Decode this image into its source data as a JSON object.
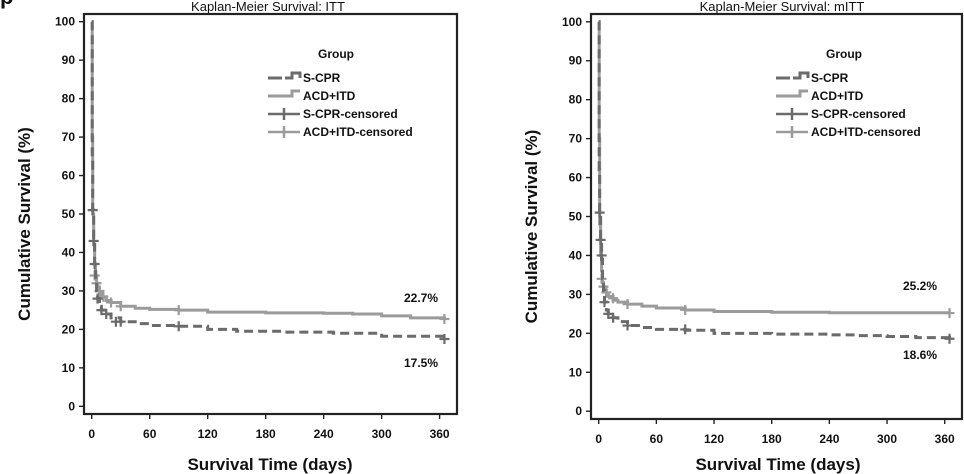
{
  "colors": {
    "s_cpr": "#6b6b6b",
    "acd_itd": "#9b9b9b"
  },
  "chart_data": [
    {
      "type": "line",
      "title": "Kaplan-Meier Survival:  ITT",
      "xlabel": "Survival Time (days)",
      "ylabel": "Cumulative Survival (%)",
      "xlim": [
        -8,
        378
      ],
      "ylim": [
        -2,
        102
      ],
      "xticks": [
        0,
        60,
        120,
        180,
        240,
        300,
        360
      ],
      "yticks": [
        0,
        10,
        20,
        30,
        40,
        50,
        60,
        70,
        80,
        90,
        100
      ],
      "grid": false,
      "legend": {
        "title": "Group",
        "position": "top-right",
        "entries": [
          "S-CPR",
          "ACD+ITD",
          "S-CPR-censored",
          "ACD+ITD-censored"
        ]
      },
      "series": [
        {
          "name": "S-CPR",
          "style": "dashed",
          "x": [
            0,
            0.5,
            1,
            2,
            3,
            4,
            5,
            6,
            8,
            10,
            14,
            20,
            30,
            45,
            60,
            90,
            120,
            150,
            200,
            250,
            300,
            365
          ],
          "y": [
            100,
            64,
            51,
            43,
            37,
            33,
            30,
            28,
            26,
            25,
            24,
            23,
            22,
            21.5,
            21,
            20.8,
            20,
            19.5,
            19.3,
            19,
            18.2,
            17.5
          ],
          "censored": [
            [
              1,
              51
            ],
            [
              2,
              43
            ],
            [
              3,
              37
            ],
            [
              6,
              28
            ],
            [
              10,
              25
            ],
            [
              15,
              24
            ],
            [
              25,
              22
            ],
            [
              30,
              22
            ],
            [
              90,
              20.8
            ],
            [
              365,
              17.5
            ]
          ],
          "end_label": "17.5%"
        },
        {
          "name": "ACD+ITD",
          "style": "solid",
          "x": [
            0,
            0.5,
            1,
            2,
            3,
            4,
            5,
            6,
            8,
            10,
            15,
            20,
            30,
            45,
            60,
            90,
            120,
            180,
            240,
            270,
            300,
            330,
            365
          ],
          "y": [
            100,
            70,
            50,
            42,
            37,
            34,
            32,
            31,
            29.5,
            28.5,
            27.5,
            27,
            26,
            25.5,
            25.2,
            25,
            24.5,
            24.3,
            24.2,
            24,
            23.5,
            23,
            22.7
          ],
          "censored": [
            [
              3,
              34
            ],
            [
              5,
              32
            ],
            [
              8,
              30
            ],
            [
              12,
              28.5
            ],
            [
              20,
              27
            ],
            [
              30,
              26
            ],
            [
              90,
              25
            ],
            [
              365,
              22.7
            ]
          ],
          "end_label": "22.7%"
        }
      ]
    },
    {
      "type": "line",
      "title": "Kaplan-Meier Survival:  mITT",
      "xlabel": "Survival Time (days)",
      "ylabel": "Cumulative Survival (%)",
      "xlim": [
        -8,
        378
      ],
      "ylim": [
        -2,
        102
      ],
      "xticks": [
        0,
        60,
        120,
        180,
        240,
        300,
        360
      ],
      "yticks": [
        0,
        10,
        20,
        30,
        40,
        50,
        60,
        70,
        80,
        90,
        100
      ],
      "grid": false,
      "legend": {
        "title": "Group",
        "position": "top-right",
        "entries": [
          "S-CPR",
          "ACD+ITD",
          "S-CPR-censored",
          "ACD+ITD-censored"
        ]
      },
      "series": [
        {
          "name": "S-CPR",
          "style": "dashed",
          "x": [
            0,
            0.5,
            1,
            2,
            3,
            4,
            5,
            6,
            8,
            10,
            15,
            20,
            30,
            45,
            60,
            90,
            120,
            180,
            240,
            270,
            300,
            330,
            365
          ],
          "y": [
            100,
            62,
            51,
            44,
            39,
            34,
            31,
            28,
            26,
            25,
            24,
            23,
            22,
            21.5,
            21,
            20.8,
            20,
            19.8,
            19.6,
            19.4,
            19.2,
            18.9,
            18.6
          ],
          "censored": [
            [
              1,
              51
            ],
            [
              2,
              44
            ],
            [
              3,
              40
            ],
            [
              6,
              28
            ],
            [
              10,
              25
            ],
            [
              15,
              24
            ],
            [
              30,
              22
            ],
            [
              90,
              21
            ],
            [
              365,
              18.6
            ]
          ],
          "end_label": "18.6%"
        },
        {
          "name": "ACD+ITD",
          "style": "solid",
          "x": [
            0,
            0.5,
            1,
            2,
            3,
            4,
            5,
            6,
            8,
            10,
            15,
            20,
            30,
            45,
            60,
            90,
            120,
            180,
            240,
            300,
            365
          ],
          "y": [
            100,
            70,
            48,
            40,
            36,
            33,
            32,
            31,
            30,
            29.5,
            28.5,
            28,
            27.5,
            27,
            26.5,
            26,
            25.6,
            25.4,
            25.3,
            25.3,
            25.2
          ],
          "censored": [
            [
              3,
              34
            ],
            [
              5,
              32
            ],
            [
              8,
              30.5
            ],
            [
              15,
              29
            ],
            [
              30,
              27.5
            ],
            [
              90,
              26
            ],
            [
              365,
              25.2
            ]
          ],
          "end_label": "25.2%"
        }
      ]
    }
  ]
}
